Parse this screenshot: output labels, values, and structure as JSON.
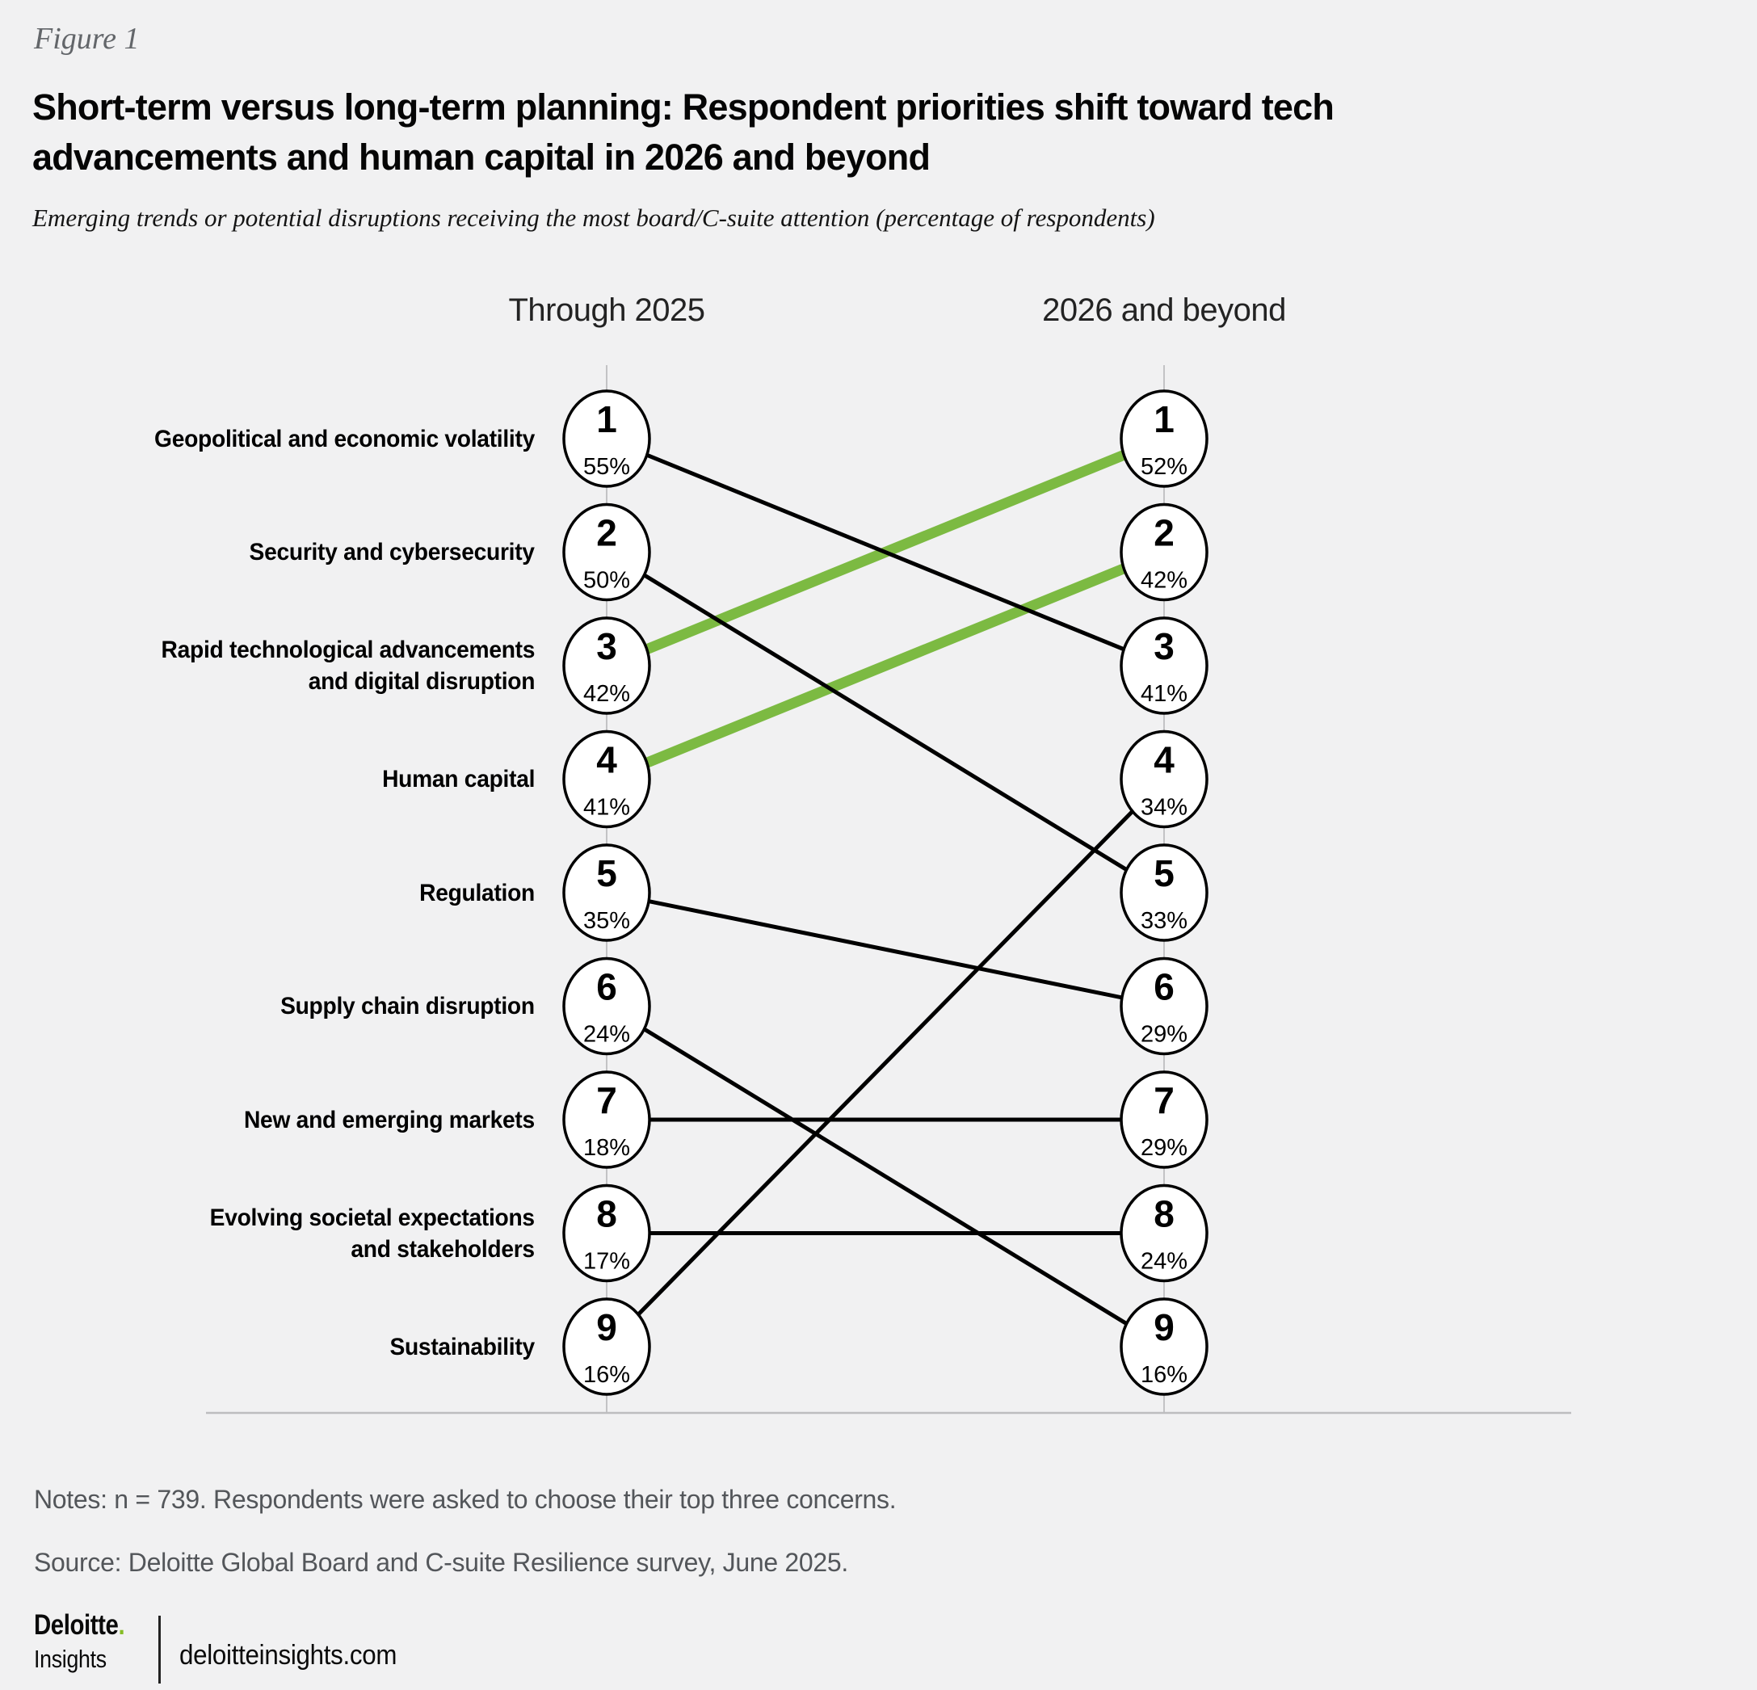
{
  "figure_label": "Figure 1",
  "title": "Short-term versus long-term planning: Respondent priorities shift toward tech advancements and human capital in 2026 and beyond",
  "subtitle": "Emerging trends or potential disruptions receiving the most board/C-suite attention (percentage of respondents)",
  "chart_data": {
    "type": "slope",
    "columns": [
      "Through 2025",
      "2026 and beyond"
    ],
    "unit": "%",
    "items": [
      {
        "label": "Geopolitical and economic volatility",
        "left_rank": 1,
        "left_value": 55,
        "right_rank": 3,
        "right_value": 41,
        "highlight": false
      },
      {
        "label": "Security and cybersecurity",
        "left_rank": 2,
        "left_value": 50,
        "right_rank": 5,
        "right_value": 33,
        "highlight": false
      },
      {
        "label": "Rapid technological advancements\nand digital disruption",
        "left_rank": 3,
        "left_value": 42,
        "right_rank": 1,
        "right_value": 52,
        "highlight": true
      },
      {
        "label": "Human capital",
        "left_rank": 4,
        "left_value": 41,
        "right_rank": 2,
        "right_value": 42,
        "highlight": true
      },
      {
        "label": "Regulation",
        "left_rank": 5,
        "left_value": 35,
        "right_rank": 6,
        "right_value": 29,
        "highlight": false
      },
      {
        "label": "Supply chain disruption",
        "left_rank": 6,
        "left_value": 24,
        "right_rank": 9,
        "right_value": 16,
        "highlight": false
      },
      {
        "label": "New and emerging markets",
        "left_rank": 7,
        "left_value": 18,
        "right_rank": 7,
        "right_value": 29,
        "highlight": false
      },
      {
        "label": "Evolving societal expectations\nand stakeholders",
        "left_rank": 8,
        "left_value": 17,
        "right_rank": 8,
        "right_value": 24,
        "highlight": false
      },
      {
        "label": "Sustainability",
        "left_rank": 9,
        "left_value": 16,
        "right_rank": 4,
        "right_value": 34,
        "highlight": false
      }
    ],
    "colors": {
      "slope_line": "#000000",
      "highlight_line": "#7CBA42",
      "circle_fill": "#FFFFFF",
      "circle_stroke": "#000000",
      "axis_gray": "#C3C3C5",
      "baseline_gray": "#BDBDBF"
    }
  },
  "notes": "Notes: n = 739. Respondents were asked to choose their top three concerns.",
  "source": "Source: Deloitte Global Board and C-suite Resilience survey, June 2025.",
  "footer": {
    "brand_name": "Deloitte",
    "brand_dot": ".",
    "brand_dot_color": "#86BC25",
    "brand_sub": "Insights",
    "site": "deloitteinsights.com"
  }
}
